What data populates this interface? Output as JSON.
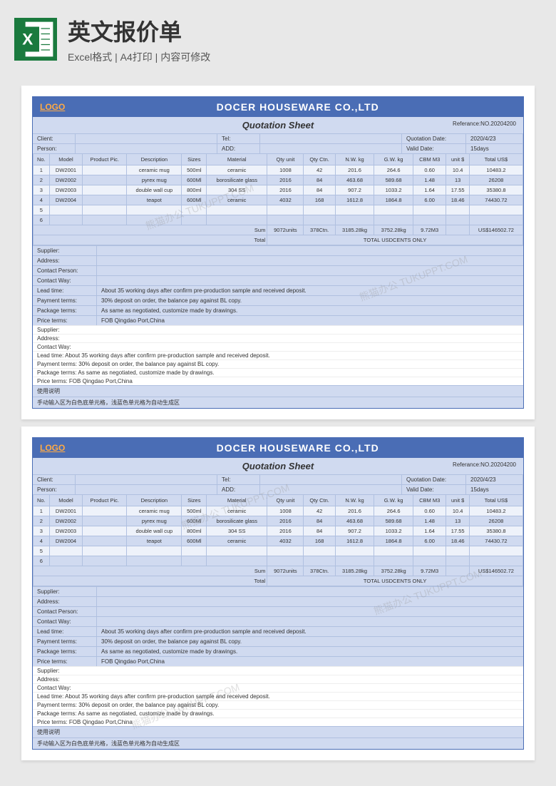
{
  "header": {
    "title": "英文报价单",
    "subtitle": "Excel格式 | A4打印 | 内容可修改"
  },
  "sheet": {
    "logo": "LOGO",
    "company": "DOCER HOUSEWARE CO.,LTD",
    "quotation_title": "Quotation Sheet",
    "reference": "Referance:NO.20204200",
    "client_label": "Client:",
    "tel_label": "Tel:",
    "quotation_date_label": "Quotation Date:",
    "quotation_date": "2020/4/23",
    "person_label": "Person:",
    "add_label": "ADD:",
    "valid_date_label": "Valid Date:",
    "valid_date": "15days",
    "columns": [
      "No.",
      "Model",
      "Product Pic.",
      "Description",
      "Sizes",
      "Material",
      "Qty unit",
      "Qty Ctn.",
      "N.W. kg",
      "G.W. kg",
      "CBM M3",
      "unit $",
      "Total US$"
    ],
    "rows": [
      [
        "1",
        "DW2001",
        "",
        "ceramic mug",
        "500ml",
        "ceramic",
        "1008",
        "42",
        "201.6",
        "264.6",
        "0.60",
        "10.4",
        "10483.2"
      ],
      [
        "2",
        "DW2002",
        "",
        "pyrex mug",
        "600Ml",
        "borosilicate glass",
        "2016",
        "84",
        "463.68",
        "589.68",
        "1.48",
        "13",
        "26208"
      ],
      [
        "3",
        "DW2003",
        "",
        "double wall cup",
        "800ml",
        "304 SS",
        "2016",
        "84",
        "907.2",
        "1033.2",
        "1.64",
        "17.55",
        "35380.8"
      ],
      [
        "4",
        "DW2004",
        "",
        "teapot",
        "600Ml",
        "ceramic",
        "4032",
        "168",
        "1612.8",
        "1864.8",
        "6.00",
        "18.46",
        "74430.72"
      ],
      [
        "5",
        "",
        "",
        "",
        "",
        "",
        "",
        "",
        "",
        "",
        "",
        "",
        ""
      ],
      [
        "6",
        "",
        "",
        "",
        "",
        "",
        "",
        "",
        "",
        "",
        "",
        "",
        ""
      ]
    ],
    "sum_label": "Sum",
    "sum": [
      "9072units",
      "378Ctn.",
      "3185.28kg",
      "3752.28kg",
      "9.72M3",
      "",
      "US$146502.72"
    ],
    "total_label": "Total",
    "total_text": "TOTAL USDCENTS ONLY",
    "supplier_label": "Supplier:",
    "address_label": "Address:",
    "contact_person_label": "Contact Person:",
    "contact_way_label": "Contact Way:",
    "lead_time_label": "Lead time:",
    "lead_time": "About 35 working days after confirm pre-production sample and received deposit.",
    "payment_label": "Payment terms:",
    "payment": "30% deposit on order, the balance pay against BL copy.",
    "package_label": "Package terms:",
    "package": "As same as negotiated, customize made by drawings.",
    "price_label": "Price terms:",
    "price": "FOB Qingdao Port,China",
    "b2_supplier": "Supplier:",
    "b2_address": "Address:",
    "b2_contact": "Contact Way:",
    "b2_lead": "Lead time: About 35 working days after confirm pre-production sample and received deposit.",
    "b2_payment": "Payment terms: 30% deposit on order, the balance pay against BL copy.",
    "b2_package": "Package terms: As same as negotiated, customize made by drawings.",
    "b2_price": "Price terms: FOB Qingdao Port,China",
    "usage_label": "使用说明",
    "usage_text": "手动输入区为白色底单元格，浅蓝色单元格为自动生成区"
  },
  "watermark": "熊猫办公 TUKUPPT.COM"
}
